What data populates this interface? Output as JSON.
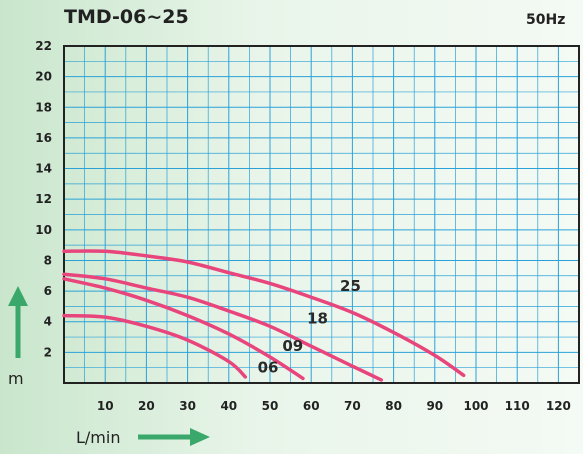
{
  "chart_data": {
    "type": "line",
    "title": "TMD-06~25",
    "subtitle": "50Hz",
    "xlabel": "L/min",
    "ylabel": "m",
    "xlim": [
      0,
      125
    ],
    "ylim": [
      0,
      22
    ],
    "xticks": [
      10,
      20,
      30,
      40,
      50,
      60,
      70,
      80,
      90,
      100,
      110,
      120
    ],
    "yticks": [
      2,
      4,
      6,
      8,
      10,
      12,
      14,
      16,
      18,
      20,
      22
    ],
    "grid": true,
    "colors": {
      "curve": "#e8457c",
      "grid": "#2aa2d8",
      "box": "#222222",
      "arrow": "#3aa86a"
    },
    "series": [
      {
        "name": "06",
        "label_at": {
          "x": 47,
          "y": 0.7
        },
        "points": [
          [
            0,
            4.4
          ],
          [
            10,
            4.3
          ],
          [
            20,
            3.7
          ],
          [
            30,
            2.8
          ],
          [
            40,
            1.4
          ],
          [
            44,
            0.4
          ]
        ]
      },
      {
        "name": "09",
        "label_at": {
          "x": 53,
          "y": 2.1
        },
        "points": [
          [
            0,
            6.8
          ],
          [
            10,
            6.2
          ],
          [
            20,
            5.4
          ],
          [
            30,
            4.4
          ],
          [
            40,
            3.2
          ],
          [
            50,
            1.7
          ],
          [
            58,
            0.3
          ]
        ]
      },
      {
        "name": "18",
        "label_at": {
          "x": 59,
          "y": 3.9
        },
        "points": [
          [
            0,
            7.1
          ],
          [
            10,
            6.8
          ],
          [
            20,
            6.2
          ],
          [
            30,
            5.6
          ],
          [
            40,
            4.7
          ],
          [
            50,
            3.7
          ],
          [
            60,
            2.4
          ],
          [
            70,
            1.1
          ],
          [
            77,
            0.2
          ]
        ]
      },
      {
        "name": "25",
        "label_at": {
          "x": 67,
          "y": 6.0
        },
        "points": [
          [
            0,
            8.6
          ],
          [
            10,
            8.6
          ],
          [
            20,
            8.3
          ],
          [
            30,
            7.9
          ],
          [
            40,
            7.2
          ],
          [
            50,
            6.5
          ],
          [
            60,
            5.6
          ],
          [
            70,
            4.6
          ],
          [
            80,
            3.3
          ],
          [
            90,
            1.8
          ],
          [
            97,
            0.5
          ]
        ]
      }
    ]
  }
}
